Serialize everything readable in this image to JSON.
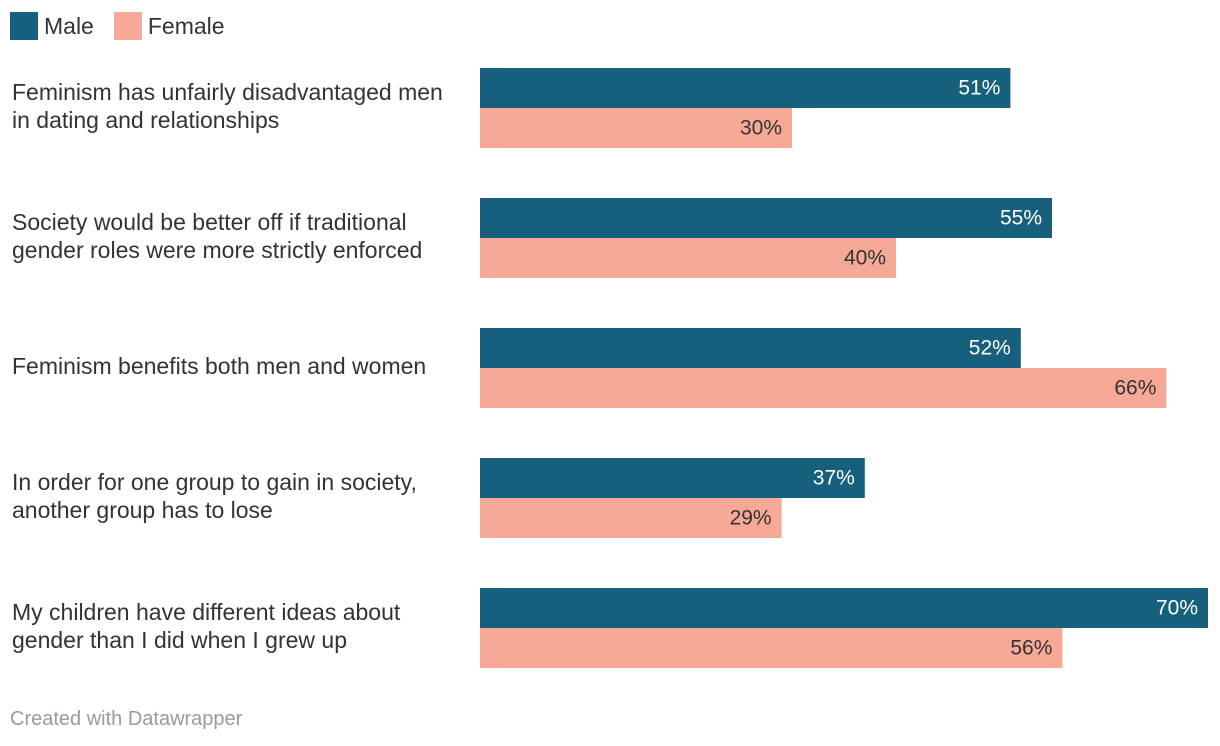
{
  "chart_data": {
    "type": "bar",
    "orientation": "horizontal",
    "categories": [
      [
        "Feminism has unfairly disadvantaged men",
        "in dating and relationships"
      ],
      [
        "Society would be better off if traditional",
        "gender roles were more strictly enforced"
      ],
      [
        "Feminism benefits both men and women"
      ],
      [
        "In order for one group to gain in society,",
        "another group has to lose"
      ],
      [
        "My children have different ideas about",
        "gender than I did when I grew up"
      ]
    ],
    "series": [
      {
        "name": "Male",
        "color": "#17607d",
        "label_color": "#ffffff",
        "values": [
          51,
          55,
          52,
          37,
          70
        ]
      },
      {
        "name": "Female",
        "color": "#f7a998",
        "label_color": "#333333",
        "values": [
          30,
          40,
          66,
          29,
          56
        ]
      }
    ],
    "value_suffix": "%",
    "xlim": [
      0,
      70
    ],
    "legend_position": "top-left"
  },
  "legend": {
    "male_label": "Male",
    "female_label": "Female",
    "male_color": "#17607d",
    "female_color": "#f7a998"
  },
  "footer": {
    "credit": "Created with Datawrapper"
  }
}
